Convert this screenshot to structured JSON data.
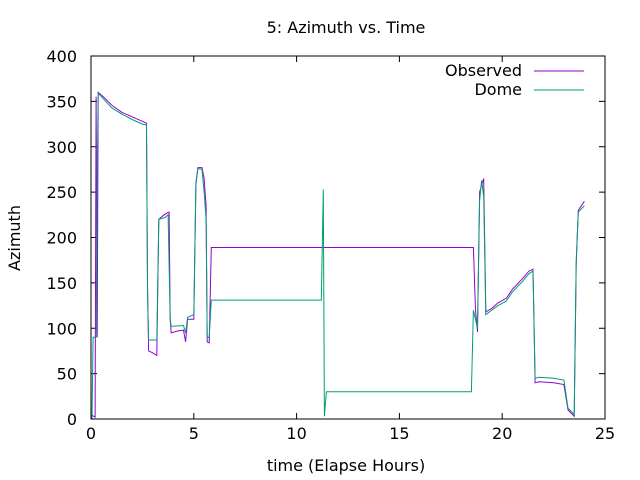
{
  "chart_data": {
    "type": "line",
    "title": "5: Azimuth vs. Time",
    "xlabel": "time (Elapse Hours)",
    "ylabel": "Azimuth",
    "xlim": [
      0,
      25
    ],
    "ylim": [
      0,
      400
    ],
    "xticks": [
      "0",
      "5",
      "10",
      "15",
      "20",
      "25"
    ],
    "yticks": [
      "0",
      "50",
      "100",
      "150",
      "200",
      "250",
      "300",
      "350",
      "400"
    ],
    "grid": false,
    "legend_position": "top-right",
    "series": [
      {
        "name": "Observed",
        "color": "#9400d3",
        "points": [
          [
            0.0,
            5
          ],
          [
            0.2,
            2
          ],
          [
            0.25,
            355
          ],
          [
            0.3,
            90
          ],
          [
            0.35,
            360
          ],
          [
            0.6,
            355
          ],
          [
            1.0,
            346
          ],
          [
            1.5,
            338
          ],
          [
            2.0,
            333
          ],
          [
            2.5,
            328
          ],
          [
            2.7,
            326
          ],
          [
            2.75,
            150
          ],
          [
            2.8,
            75
          ],
          [
            3.0,
            73
          ],
          [
            3.2,
            70
          ],
          [
            3.3,
            220
          ],
          [
            3.5,
            224
          ],
          [
            3.7,
            227
          ],
          [
            3.8,
            228
          ],
          [
            3.85,
            110
          ],
          [
            3.9,
            95
          ],
          [
            4.2,
            97
          ],
          [
            4.5,
            98
          ],
          [
            4.6,
            85
          ],
          [
            4.7,
            110
          ],
          [
            5.0,
            110
          ],
          [
            5.1,
            260
          ],
          [
            5.2,
            277
          ],
          [
            5.4,
            277
          ],
          [
            5.5,
            265
          ],
          [
            5.6,
            235
          ],
          [
            5.65,
            85
          ],
          [
            5.75,
            84
          ],
          [
            5.85,
            189
          ],
          [
            5.9,
            189
          ],
          [
            18.6,
            189
          ],
          [
            18.7,
            120
          ],
          [
            18.8,
            96
          ],
          [
            18.9,
            250
          ],
          [
            19.1,
            265
          ],
          [
            19.2,
            118
          ],
          [
            19.5,
            122
          ],
          [
            19.8,
            128
          ],
          [
            20.2,
            133
          ],
          [
            20.5,
            143
          ],
          [
            21.0,
            155
          ],
          [
            21.3,
            163
          ],
          [
            21.5,
            165
          ],
          [
            21.6,
            40
          ],
          [
            21.8,
            41
          ],
          [
            22.5,
            40
          ],
          [
            23.0,
            38
          ],
          [
            23.2,
            10
          ],
          [
            23.5,
            3
          ],
          [
            23.6,
            170
          ],
          [
            23.7,
            230
          ],
          [
            24.0,
            240
          ]
        ]
      },
      {
        "name": "Dome",
        "color": "#009e73",
        "points": [
          [
            0.0,
            0
          ],
          [
            0.05,
            0
          ],
          [
            0.1,
            90
          ],
          [
            0.25,
            90
          ],
          [
            0.3,
            270
          ],
          [
            0.35,
            359
          ],
          [
            0.6,
            353
          ],
          [
            1.0,
            343
          ],
          [
            1.5,
            336
          ],
          [
            2.0,
            330
          ],
          [
            2.5,
            325
          ],
          [
            2.7,
            324
          ],
          [
            2.75,
            140
          ],
          [
            2.8,
            87
          ],
          [
            3.2,
            87
          ],
          [
            3.3,
            220
          ],
          [
            3.6,
            222
          ],
          [
            3.75,
            225
          ],
          [
            3.85,
            110
          ],
          [
            3.9,
            102
          ],
          [
            4.5,
            103
          ],
          [
            4.6,
            95
          ],
          [
            4.7,
            112
          ],
          [
            5.0,
            115
          ],
          [
            5.1,
            258
          ],
          [
            5.2,
            276
          ],
          [
            5.4,
            275
          ],
          [
            5.5,
            250
          ],
          [
            5.6,
            220
          ],
          [
            5.65,
            90
          ],
          [
            5.75,
            90
          ],
          [
            5.85,
            131
          ],
          [
            11.2,
            131
          ],
          [
            11.3,
            253
          ],
          [
            11.35,
            3
          ],
          [
            11.45,
            30
          ],
          [
            18.5,
            30
          ],
          [
            18.6,
            120
          ],
          [
            18.8,
            100
          ],
          [
            18.9,
            240
          ],
          [
            19.0,
            263
          ],
          [
            19.1,
            245
          ],
          [
            19.2,
            115
          ],
          [
            19.5,
            120
          ],
          [
            19.8,
            125
          ],
          [
            20.2,
            130
          ],
          [
            20.5,
            140
          ],
          [
            21.0,
            152
          ],
          [
            21.3,
            160
          ],
          [
            21.5,
            163
          ],
          [
            21.6,
            45
          ],
          [
            21.8,
            46
          ],
          [
            22.5,
            45
          ],
          [
            23.0,
            43
          ],
          [
            23.2,
            12
          ],
          [
            23.5,
            5
          ],
          [
            23.6,
            175
          ],
          [
            23.7,
            228
          ],
          [
            24.0,
            235
          ]
        ]
      }
    ]
  }
}
